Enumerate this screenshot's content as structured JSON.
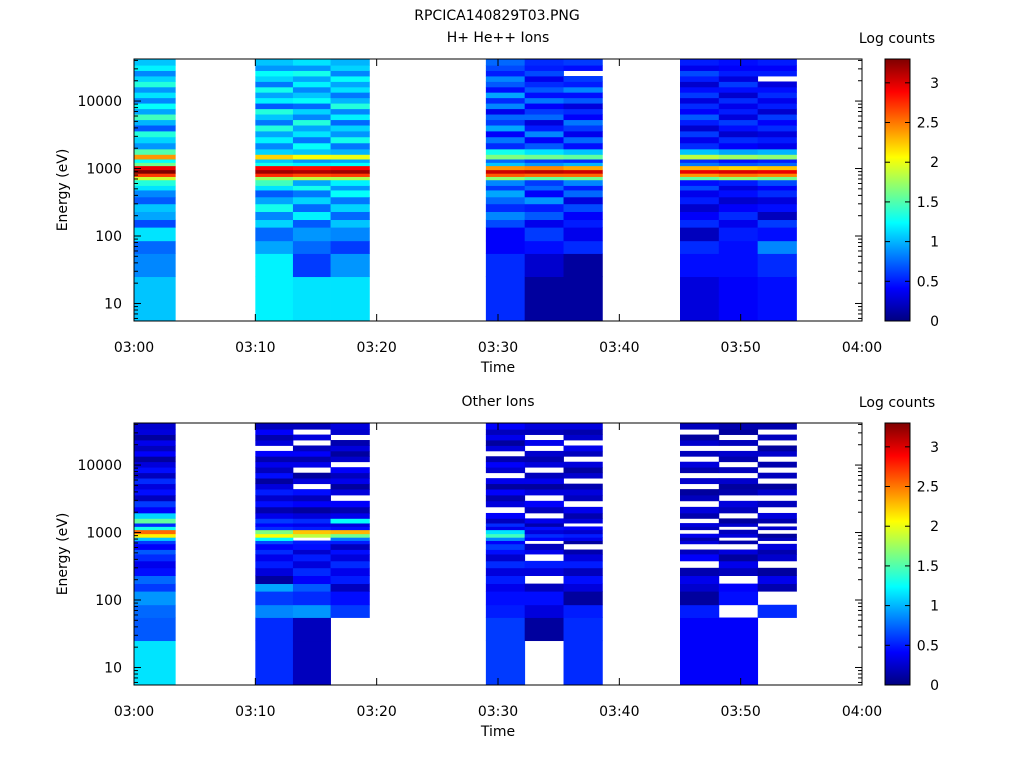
{
  "figure_title": "RPCICA140829T03.PNG",
  "colorbar": {
    "label": "Log counts",
    "min": 0,
    "max": 3.3,
    "tick_labels": [
      "0",
      "0.5",
      "1",
      "1.5",
      "2",
      "2.5",
      "3"
    ],
    "tick_values": [
      0,
      0.5,
      1,
      1.5,
      2,
      2.5,
      3
    ],
    "colormap": [
      "#00007f",
      "#0000ff",
      "#007fff",
      "#00ffff",
      "#7fff7f",
      "#ffff00",
      "#ff7f00",
      "#ff0000",
      "#7f0000"
    ]
  },
  "chart_data": [
    {
      "type": "heatmap",
      "title": "H+ He++ Ions",
      "xlabel": "Time",
      "ylabel": "Energy (eV)",
      "x_tick_labels": [
        "03:00",
        "03:10",
        "03:20",
        "03:30",
        "03:40",
        "03:50",
        "04:00"
      ],
      "y_tick_labels": [
        "10",
        "100",
        "1000",
        "10000"
      ],
      "y_tick_values": [
        10,
        100,
        1000,
        10000
      ],
      "xlim_minutes": [
        0,
        60
      ],
      "ylim": [
        5.5,
        42000
      ],
      "y_scale": "log",
      "energy_edges": [
        5.5,
        25,
        55,
        85,
        135,
        175,
        230,
        300,
        380,
        480,
        560,
        680,
        760,
        850,
        960,
        1100,
        1230,
        1380,
        1620,
        1950,
        2400,
        2950,
        3600,
        4400,
        5300,
        6400,
        7700,
        9300,
        11200,
        13500,
        16200,
        19500,
        23500,
        28300,
        34000,
        42000
      ],
      "time_columns": [
        {
          "t_start": 0.0,
          "t_end": 3.4,
          "log_counts": [
            1.05,
            0.85,
            0.75,
            1.15,
            0.65,
            0.95,
            1.05,
            0.7,
            0.85,
            1.15,
            1.35,
            1.9,
            2.7,
            3.3,
            2.95,
            1.6,
            1.25,
            2.4,
            1.5,
            0.9,
            1.1,
            1.35,
            0.7,
            1.0,
            1.45,
            0.95,
            1.25,
            0.85,
            1.15,
            0.9,
            1.35,
            1.1,
            0.85,
            1.2,
            1.05
          ]
        },
        {
          "t_start": 10.0,
          "t_end": 13.1,
          "log_counts": [
            1.2,
            1.2,
            0.95,
            0.75,
            1.1,
            0.85,
            1.3,
            0.95,
            0.7,
            1.15,
            1.45,
            1.75,
            2.75,
            3.2,
            2.9,
            1.3,
            1.05,
            2.2,
            1.1,
            0.85,
            1.2,
            0.95,
            1.35,
            0.8,
            1.05,
            1.35,
            0.7,
            1.2,
            0.95,
            1.3,
            0.8,
            1.1,
            1.25,
            0.9,
            1.05
          ]
        },
        {
          "t_start": 13.1,
          "t_end": 16.2,
          "log_counts": [
            1.15,
            0.6,
            0.75,
            0.9,
            0.7,
            1.2,
            0.75,
            1.1,
            0.8,
            1.3,
            0.95,
            1.85,
            2.65,
            3.15,
            2.85,
            1.2,
            0.9,
            2.05,
            1.05,
            1.25,
            0.8,
            1.15,
            0.95,
            1.35,
            0.85,
            1.1,
            0.75,
            1.25,
            1.05,
            0.85,
            1.2,
            0.95,
            1.3,
            0.9,
            1.15
          ]
        },
        {
          "t_start": 16.2,
          "t_end": 19.4,
          "log_counts": [
            1.15,
            0.9,
            0.6,
            0.85,
            1.05,
            0.75,
            1.1,
            0.8,
            1.25,
            0.9,
            1.2,
            1.8,
            2.7,
            3.2,
            2.9,
            1.25,
            0.95,
            2.0,
            1.0,
            0.8,
            1.3,
            0.9,
            1.1,
            0.75,
            1.2,
            0.85,
            1.35,
            1.0,
            0.8,
            1.15,
            0.95,
            1.25,
            0.85,
            1.1,
            1.0
          ]
        },
        {
          "t_start": 29.0,
          "t_end": 32.2,
          "log_counts": [
            0.55,
            0.55,
            0.4,
            0.4,
            0.65,
            0.85,
            0.55,
            0.75,
            0.95,
            0.6,
            0.85,
            1.7,
            2.6,
            3.05,
            2.4,
            1.05,
            0.75,
            1.65,
            1.3,
            0.55,
            0.8,
            0.4,
            0.95,
            0.6,
            0.75,
            0.35,
            0.85,
            0.55,
            0.95,
            0.45,
            0.7,
            0.85,
            0.5,
            0.65,
            0.75
          ]
        },
        {
          "t_start": 32.2,
          "t_end": 35.4,
          "log_counts": [
            0.1,
            0.25,
            0.45,
            0.6,
            0.35,
            0.7,
            0.5,
            0.9,
            0.4,
            0.75,
            0.6,
            1.55,
            2.55,
            3.1,
            2.45,
            0.9,
            0.6,
            1.6,
            1.15,
            0.7,
            0.4,
            0.85,
            0.5,
            0.3,
            0.75,
            0.6,
            0.4,
            0.8,
            0.45,
            0.7,
            0.55,
            0.35,
            0.65,
            0.5,
            0.55
          ]
        },
        {
          "t_start": 35.4,
          "t_end": 38.6,
          "log_counts": [
            0.1,
            0.1,
            0.55,
            0.35,
            0.5,
            0.4,
            0.65,
            0.3,
            0.75,
            0.5,
            0.85,
            1.6,
            2.55,
            3.05,
            2.35,
            1.0,
            0.55,
            1.55,
            1.05,
            0.45,
            0.75,
            0.35,
            0.6,
            0.8,
            0.4,
            0.55,
            0.3,
            0.7,
            0.45,
            0.85,
            0.5,
            0.6,
            null,
            0.45,
            0.6
          ]
        },
        {
          "t_start": 45.0,
          "t_end": 48.2,
          "log_counts": [
            0.3,
            0.45,
            0.55,
            0.2,
            0.55,
            0.4,
            0.25,
            0.5,
            0.35,
            0.65,
            0.45,
            1.55,
            2.4,
            2.95,
            2.3,
            0.8,
            0.55,
            1.85,
            1.05,
            0.55,
            0.35,
            0.6,
            0.25,
            0.5,
            0.7,
            0.4,
            0.55,
            0.3,
            0.6,
            0.45,
            0.25,
            0.5,
            0.65,
            0.35,
            0.5
          ]
        },
        {
          "t_start": 48.2,
          "t_end": 51.4,
          "log_counts": [
            0.4,
            0.45,
            0.45,
            0.5,
            0.35,
            0.55,
            0.4,
            0.25,
            0.45,
            0.3,
            0.5,
            1.7,
            2.5,
            3.0,
            2.2,
            0.7,
            0.45,
            1.75,
            0.95,
            0.4,
            0.55,
            0.25,
            0.45,
            0.6,
            0.3,
            0.5,
            0.35,
            0.55,
            0.25,
            0.45,
            0.6,
            0.3,
            0.5,
            0.4,
            0.45
          ]
        },
        {
          "t_start": 51.4,
          "t_end": 54.6,
          "log_counts": [
            0.45,
            0.55,
            0.85,
            0.45,
            0.6,
            0.2,
            0.45,
            0.3,
            0.55,
            0.4,
            0.65,
            1.6,
            2.45,
            2.95,
            2.25,
            0.75,
            0.5,
            1.7,
            1.0,
            0.35,
            0.5,
            0.3,
            0.55,
            0.4,
            0.6,
            0.25,
            0.5,
            0.35,
            0.55,
            0.45,
            0.3,
            null,
            0.5,
            0.4,
            0.5
          ]
        }
      ]
    },
    {
      "type": "heatmap",
      "title": "Other Ions",
      "xlabel": "Time",
      "ylabel": "Energy (eV)",
      "x_tick_labels": [
        "03:00",
        "03:10",
        "03:20",
        "03:30",
        "03:40",
        "03:50",
        "04:00"
      ],
      "y_tick_labels": [
        "10",
        "100",
        "1000",
        "10000"
      ],
      "y_tick_values": [
        10,
        100,
        1000,
        10000
      ],
      "xlim_minutes": [
        0,
        60
      ],
      "ylim": [
        5.5,
        42000
      ],
      "y_scale": "log",
      "energy_edges": [
        5.5,
        25,
        55,
        85,
        135,
        175,
        230,
        300,
        380,
        480,
        560,
        680,
        760,
        850,
        960,
        1100,
        1230,
        1380,
        1620,
        1950,
        2400,
        2950,
        3600,
        4400,
        5300,
        6400,
        7700,
        9300,
        11200,
        13500,
        16200,
        19500,
        23500,
        28300,
        34000,
        42000
      ],
      "time_columns": [
        {
          "t_start": 0.0,
          "t_end": 3.4,
          "log_counts": [
            1.15,
            0.7,
            0.75,
            0.9,
            0.6,
            0.75,
            0.45,
            0.35,
            0.55,
            0.7,
            0.4,
            0.6,
            1.05,
            2.1,
            2.55,
            1.3,
            0.55,
            1.55,
            1.1,
            0.4,
            0.6,
            0.2,
            0.45,
            0.3,
            0.55,
            0.2,
            0.45,
            0.3,
            0.1,
            0.4,
            0.2,
            0.35,
            0.1,
            0.3,
            0.25
          ]
        },
        {
          "t_start": 10.0,
          "t_end": 13.1,
          "log_counts": [
            0.55,
            0.55,
            0.85,
            0.6,
            0.95,
            0.1,
            0.3,
            0.5,
            0.35,
            0.55,
            0.4,
            0.65,
            1.25,
            2.05,
            1.65,
            0.55,
            0.4,
            0.6,
            0.35,
            0.15,
            0.45,
            0.25,
            0.5,
            0.3,
            0.1,
            0.45,
            0.2,
            0.35,
            0.15,
            0.4,
            null,
            0.3,
            0.15,
            0.4,
            0.2
          ]
        },
        {
          "t_start": 13.1,
          "t_end": 16.2,
          "log_counts": [
            0.2,
            0.2,
            0.9,
            0.55,
            0.7,
            0.4,
            0.55,
            0.3,
            0.5,
            0.25,
            0.45,
            0.5,
            null,
            1.85,
            2.25,
            0.5,
            0.35,
            0.55,
            0.3,
            0.1,
            0.4,
            0.2,
            0.45,
            null,
            0.3,
            0.1,
            null,
            0.35,
            0.15,
            0.4,
            0.2,
            null,
            0.3,
            null,
            0.2
          ]
        },
        {
          "t_start": 16.2,
          "t_end": 19.4,
          "log_counts": [
            null,
            null,
            0.6,
            0.45,
            0.2,
            0.5,
            0.35,
            0.55,
            0.3,
            0.45,
            0.2,
            0.5,
            0.8,
            1.6,
            2.3,
            0.45,
            0.3,
            1.25,
            0.35,
            0.15,
            0.4,
            null,
            0.3,
            0.1,
            0.35,
            0.2,
            0.4,
            null,
            0.25,
            0.1,
            0.3,
            0.15,
            null,
            0.25,
            0.3
          ]
        },
        {
          "t_start": 29.0,
          "t_end": 32.2,
          "log_counts": [
            0.6,
            0.6,
            0.5,
            0.45,
            0.35,
            0.5,
            0.3,
            0.55,
            0.25,
            0.45,
            0.6,
            0.4,
            0.85,
            1.45,
            1.15,
            0.35,
            0.55,
            0.2,
            0.4,
            null,
            0.3,
            0.15,
            0.4,
            0.1,
            0.35,
            null,
            0.25,
            0.4,
            0.15,
            null,
            0.3,
            0.1,
            0.35,
            0.2,
            0.4
          ]
        },
        {
          "t_start": 32.2,
          "t_end": 35.4,
          "log_counts": [
            null,
            0.1,
            0.3,
            0.45,
            0.2,
            null,
            0.3,
            0.5,
            null,
            0.35,
            0.2,
            null,
            0.4,
            0.55,
            0.3,
            0.45,
            0.15,
            0.35,
            null,
            0.2,
            0.4,
            null,
            0.3,
            0.1,
            0.35,
            0.2,
            null,
            0.3,
            0.15,
            0.25,
            null,
            0.35,
            null,
            0.2,
            0.3
          ]
        },
        {
          "t_start": 35.4,
          "t_end": 38.6,
          "log_counts": [
            0.55,
            0.55,
            0.5,
            0.1,
            0.3,
            0.45,
            0.2,
            0.5,
            0.3,
            0.15,
            null,
            0.1,
            0.35,
            0.5,
            0.25,
            0.4,
            null,
            0.3,
            0.15,
            0.35,
            null,
            0.2,
            0.3,
            0.15,
            null,
            0.25,
            0.1,
            0.3,
            null,
            0.2,
            0.35,
            null,
            0.25,
            0.15,
            0.3
          ]
        },
        {
          "t_start": 45.0,
          "t_end": 48.2,
          "log_counts": [
            0.4,
            0.4,
            0.5,
            0.1,
            0.25,
            0.35,
            0.15,
            null,
            0.4,
            0.2,
            null,
            0.3,
            0.15,
            0.35,
            null,
            0.2,
            0.3,
            null,
            0.15,
            0.3,
            null,
            0.2,
            0.1,
            null,
            0.25,
            null,
            0.15,
            0.3,
            null,
            0.2,
            null,
            0.25,
            0.1,
            null,
            0.2
          ]
        },
        {
          "t_start": 48.2,
          "t_end": 51.4,
          "log_counts": [
            0.4,
            0.4,
            null,
            0.45,
            0.4,
            null,
            0.2,
            0.35,
            0.1,
            0.3,
            null,
            0.15,
            null,
            0.3,
            0.2,
            null,
            0.25,
            0.1,
            null,
            0.2,
            0.3,
            null,
            0.15,
            0.1,
            0.25,
            null,
            0.2,
            null,
            0.15,
            0.25,
            null,
            0.2,
            null,
            0.1,
            0.15
          ]
        },
        {
          "t_start": 51.4,
          "t_end": 54.6,
          "log_counts": [
            null,
            null,
            0.55,
            null,
            0.15,
            0.35,
            0.1,
            null,
            0.25,
            0.15,
            0.3,
            null,
            0.2,
            0.1,
            null,
            0.25,
            null,
            0.15,
            0.3,
            null,
            0.2,
            null,
            0.25,
            0.1,
            null,
            0.2,
            null,
            0.15,
            null,
            0.25,
            0.1,
            null,
            0.2,
            null,
            0.15
          ]
        }
      ]
    }
  ]
}
